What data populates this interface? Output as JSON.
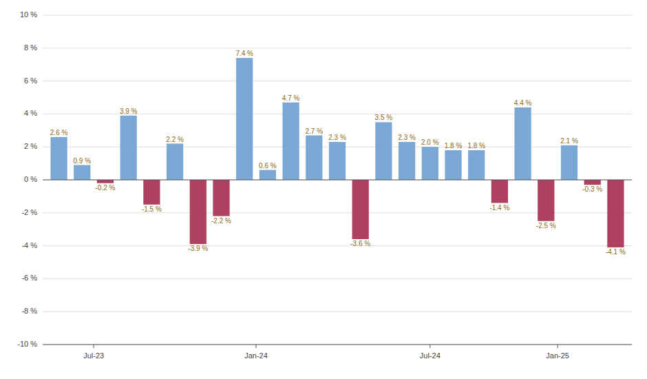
{
  "chart_data": {
    "type": "bar",
    "x": [
      0,
      1,
      2,
      3,
      4,
      5,
      6,
      7,
      8,
      9,
      10,
      11,
      12,
      13,
      14,
      15,
      16,
      17,
      18,
      19,
      20,
      21,
      22,
      23,
      24
    ],
    "values": [
      2.6,
      0.9,
      -0.2,
      3.9,
      -1.5,
      2.2,
      -3.9,
      -2.2,
      7.4,
      0.6,
      4.7,
      2.7,
      2.3,
      -3.6,
      3.5,
      2.3,
      2.0,
      1.8,
      1.8,
      -1.4,
      4.4,
      -2.5,
      2.1,
      -0.3,
      -4.1
    ],
    "value_labels": [
      "2.6 %",
      "0.9 %",
      "-0.2 %",
      "3.9 %",
      "-1.5 %",
      "2.2 %",
      "-3.9 %",
      "-2.2 %",
      "7.4 %",
      "0.6 %",
      "4.7 %",
      "2.7 %",
      "2.3 %",
      "-3.6 %",
      "3.5 %",
      "2.3 %",
      "2.0 %",
      "1.8 %",
      "1.8 %",
      "-1.4 %",
      "4.4 %",
      "-2.5 %",
      "2.1 %",
      "-0.3 %",
      "-4.1 %"
    ],
    "colors": [
      "#7BA7D4",
      "#7BA7D4",
      "#B04060",
      "#7BA7D4",
      "#B04060",
      "#7BA7D4",
      "#B04060",
      "#B04060",
      "#7BA7D4",
      "#7BA7D4",
      "#7BA7D4",
      "#7BA7D4",
      "#7BA7D4",
      "#B04060",
      "#7BA7D4",
      "#7BA7D4",
      "#7BA7D4",
      "#7BA7D4",
      "#7BA7D4",
      "#B04060",
      "#7BA7D4",
      "#B04060",
      "#7BA7D4",
      "#B04060",
      "#B04060"
    ],
    "data_labels": true,
    "xlim": [
      -0.7,
      24.7
    ],
    "xticks": [
      {
        "value": 1.5,
        "label": "Jul-23"
      },
      {
        "value": 8.5,
        "label": "Jan-24"
      },
      {
        "value": 16.0,
        "label": "Jul-24"
      },
      {
        "value": 21.5,
        "label": "Jan-25"
      }
    ],
    "ylim": [
      -10,
      10
    ],
    "yticks": [
      {
        "value": -10,
        "label": "-10 %"
      },
      {
        "value": -8,
        "label": "-8 %"
      },
      {
        "value": -6,
        "label": "-6 %"
      },
      {
        "value": -4,
        "label": "-4 %"
      },
      {
        "value": -2,
        "label": "-2 %"
      },
      {
        "value": 0,
        "label": "0 %"
      },
      {
        "value": 2,
        "label": "2 %"
      },
      {
        "value": 4,
        "label": "4 %"
      },
      {
        "value": 6,
        "label": "6 %"
      },
      {
        "value": 8,
        "label": "8 %"
      },
      {
        "value": 10,
        "label": "10 %"
      }
    ],
    "grid": true
  }
}
